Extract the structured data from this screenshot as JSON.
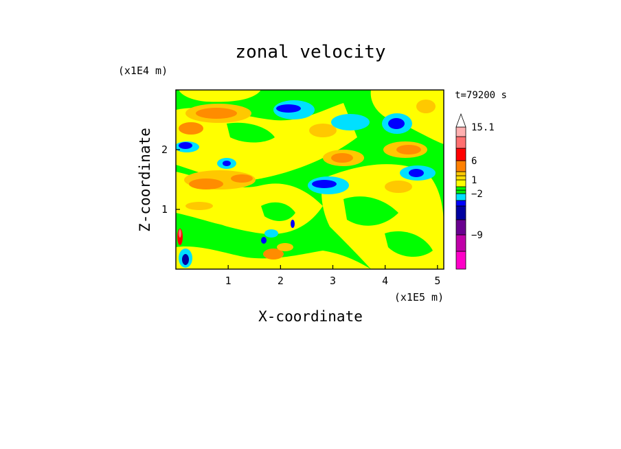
{
  "chart_data": {
    "type": "heatmap",
    "title": "zonal velocity",
    "xlabel": "X-coordinate",
    "ylabel": "Z-coordinate",
    "x_unit": "(x1E5 m)",
    "y_unit": "(x1E4 m)",
    "time_label": "t=79200 s",
    "xlim": [
      0,
      5.12
    ],
    "ylim": [
      0,
      3.0
    ],
    "x_ticks": [
      1,
      2,
      3,
      4,
      5
    ],
    "y_ticks": [
      1,
      2
    ],
    "colorbar": {
      "levels": [
        {
          "lo": null,
          "hi": -12,
          "color": "#ff00c8"
        },
        {
          "lo": -12,
          "hi": -9,
          "color": "#c000a8"
        },
        {
          "lo": -9,
          "hi": -6,
          "color": "#6a0090"
        },
        {
          "lo": -6,
          "hi": -4,
          "color": "#0000a0"
        },
        {
          "lo": -4,
          "hi": -3,
          "color": "#0000ff"
        },
        {
          "lo": -3,
          "hi": -2,
          "color": "#00e0ff"
        },
        {
          "lo": -2,
          "hi": -1,
          "color": "#00f000"
        },
        {
          "lo": -1,
          "hi": 0,
          "color": "#00ff00"
        },
        {
          "lo": 0,
          "hi": 1,
          "color": "#ffff00"
        },
        {
          "lo": 1,
          "hi": 2,
          "color": "#ffe000"
        },
        {
          "lo": 2,
          "hi": 3,
          "color": "#ffc800"
        },
        {
          "lo": 3,
          "hi": 6,
          "color": "#ff8000"
        },
        {
          "lo": 6,
          "hi": 9,
          "color": "#ff0000"
        },
        {
          "lo": 9,
          "hi": 12,
          "color": "#ff7070"
        },
        {
          "lo": 12,
          "hi": 15.1,
          "color": "#ffb0b0"
        },
        {
          "lo": 15.1,
          "hi": null,
          "color": "#ffffff"
        }
      ],
      "labels": [
        {
          "value": "15.1",
          "at": 15.1
        },
        {
          "value": "6",
          "at": 6
        },
        {
          "value": "1",
          "at": 1
        },
        {
          "value": "−2",
          "at": -2
        },
        {
          "value": "−9",
          "at": -9
        }
      ]
    }
  }
}
